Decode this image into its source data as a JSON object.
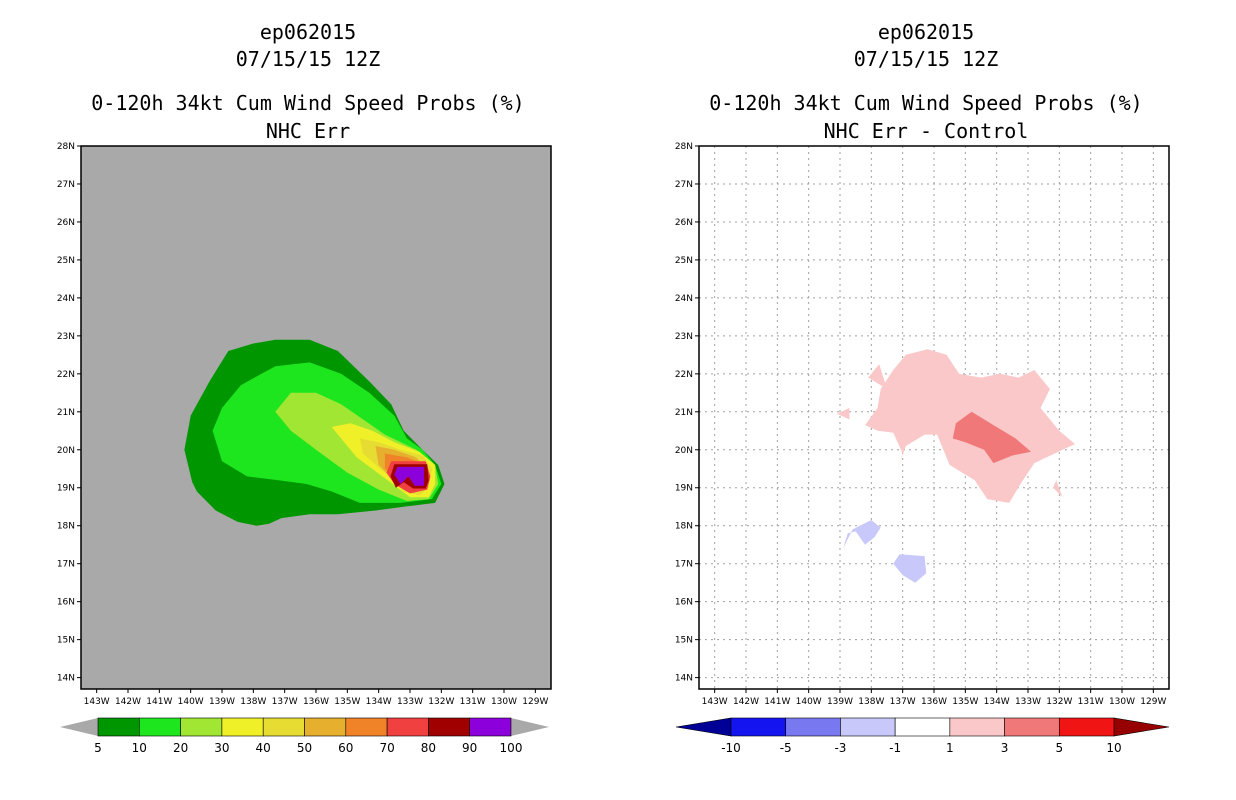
{
  "colors": {
    "background": "#a9a9a9",
    "plot_bg": "#ffffff",
    "grid": "#a0a0a0"
  },
  "chart_data": [
    {
      "type": "contour-map",
      "title_lines": [
        "ep062015",
        "07/15/15 12Z",
        "0-120h 34kt Cum Wind Speed Probs (%)",
        "NHC Err"
      ],
      "x_ticks": [
        "143W",
        "142W",
        "141W",
        "140W",
        "139W",
        "138W",
        "137W",
        "136W",
        "135W",
        "134W",
        "133W",
        "132W",
        "131W",
        "130W",
        "129W"
      ],
      "y_ticks": [
        "28N",
        "27N",
        "26N",
        "25N",
        "24N",
        "23N",
        "22N",
        "21N",
        "20N",
        "19N",
        "18N",
        "17N",
        "16N",
        "15N",
        "14N"
      ],
      "xlim_deg_w": [
        143.5,
        128.5
      ],
      "ylim_deg_n": [
        13.7,
        28.0
      ],
      "grid": false,
      "colorbar": {
        "labels": [
          "5",
          "10",
          "20",
          "30",
          "40",
          "50",
          "60",
          "70",
          "80",
          "90",
          "100"
        ],
        "colors": [
          "#009600",
          "#1ee61e",
          "#a0e632",
          "#f0f028",
          "#e6dc32",
          "#e6af2d",
          "#f08228",
          "#f04040",
          "#a00000",
          "#8c00dc"
        ]
      },
      "contours": [
        {
          "level": "5",
          "color": "#009600",
          "points": [
            [
              139.95,
              19.15
            ],
            [
              140.2,
              20.0
            ],
            [
              140.0,
              20.9
            ],
            [
              139.4,
              21.8
            ],
            [
              138.8,
              22.6
            ],
            [
              138.0,
              22.8
            ],
            [
              137.3,
              22.9
            ],
            [
              136.2,
              22.9
            ],
            [
              135.3,
              22.6
            ],
            [
              134.3,
              21.8
            ],
            [
              133.6,
              21.2
            ],
            [
              133.2,
              20.5
            ],
            [
              132.6,
              20.0
            ],
            [
              132.1,
              19.6
            ],
            [
              131.9,
              19.1
            ],
            [
              132.2,
              18.6
            ],
            [
              133.2,
              18.5
            ],
            [
              134.1,
              18.4
            ],
            [
              135.3,
              18.3
            ],
            [
              136.2,
              18.3
            ],
            [
              137.1,
              18.2
            ],
            [
              137.5,
              18.05
            ],
            [
              137.9,
              18.0
            ],
            [
              138.5,
              18.1
            ],
            [
              139.2,
              18.4
            ],
            [
              139.8,
              18.9
            ]
          ]
        },
        {
          "level": "10",
          "color": "#1ee61e",
          "points": [
            [
              139.3,
              20.5
            ],
            [
              139.0,
              21.1
            ],
            [
              138.4,
              21.7
            ],
            [
              137.3,
              22.2
            ],
            [
              136.2,
              22.3
            ],
            [
              135.2,
              22.0
            ],
            [
              134.3,
              21.5
            ],
            [
              133.5,
              20.9
            ],
            [
              133.1,
              20.3
            ],
            [
              132.6,
              20.0
            ],
            [
              132.2,
              19.6
            ],
            [
              132.0,
              19.1
            ],
            [
              132.3,
              18.7
            ],
            [
              133.3,
              18.6
            ],
            [
              134.6,
              18.6
            ],
            [
              135.5,
              18.9
            ],
            [
              136.3,
              19.1
            ],
            [
              137.2,
              19.2
            ],
            [
              138.2,
              19.3
            ],
            [
              139.0,
              19.7
            ]
          ]
        },
        {
          "level": "20",
          "color": "#a0e632",
          "points": [
            [
              137.3,
              21.0
            ],
            [
              136.8,
              21.5
            ],
            [
              136.0,
              21.5
            ],
            [
              135.2,
              21.2
            ],
            [
              134.5,
              20.8
            ],
            [
              133.8,
              20.4
            ],
            [
              132.8,
              20.0
            ],
            [
              132.2,
              19.6
            ],
            [
              132.1,
              19.1
            ],
            [
              132.4,
              18.7
            ],
            [
              133.1,
              18.65
            ],
            [
              134.0,
              18.95
            ],
            [
              135.0,
              19.4
            ],
            [
              136.0,
              20.0
            ],
            [
              136.8,
              20.5
            ]
          ]
        },
        {
          "level": "30",
          "color": "#f0f028",
          "points": [
            [
              135.5,
              20.6
            ],
            [
              134.9,
              20.7
            ],
            [
              134.2,
              20.5
            ],
            [
              133.5,
              20.2
            ],
            [
              132.7,
              19.95
            ],
            [
              132.2,
              19.6
            ],
            [
              132.2,
              19.1
            ],
            [
              132.4,
              18.75
            ],
            [
              133.0,
              18.75
            ],
            [
              133.8,
              19.25
            ],
            [
              134.7,
              19.8
            ]
          ]
        },
        {
          "level": "40",
          "color": "#e6dc32",
          "points": [
            [
              134.6,
              20.3
            ],
            [
              134.0,
              20.2
            ],
            [
              133.3,
              20.0
            ],
            [
              132.6,
              19.85
            ],
            [
              132.3,
              19.5
            ],
            [
              132.4,
              19.0
            ],
            [
              132.7,
              18.8
            ],
            [
              133.2,
              18.9
            ],
            [
              133.8,
              19.4
            ],
            [
              134.5,
              19.9
            ]
          ]
        },
        {
          "level": "50",
          "color": "#e6af2d",
          "points": [
            [
              134.1,
              20.1
            ],
            [
              133.5,
              20.0
            ],
            [
              132.8,
              19.8
            ],
            [
              132.4,
              19.4
            ],
            [
              132.5,
              19.0
            ],
            [
              132.9,
              18.85
            ],
            [
              133.4,
              19.1
            ],
            [
              134.0,
              19.6
            ]
          ]
        },
        {
          "level": "60",
          "color": "#f08228",
          "points": [
            [
              133.8,
              19.9
            ],
            [
              133.1,
              19.8
            ],
            [
              132.5,
              19.6
            ],
            [
              132.45,
              19.1
            ],
            [
              132.8,
              18.9
            ],
            [
              133.3,
              19.2
            ],
            [
              133.8,
              19.5
            ]
          ]
        },
        {
          "level": "70",
          "color": "#f04040",
          "points": [
            [
              133.6,
              19.7
            ],
            [
              132.5,
              19.7
            ],
            [
              132.35,
              19.3
            ],
            [
              132.45,
              18.95
            ],
            [
              133.0,
              18.85
            ],
            [
              133.5,
              19.1
            ],
            [
              133.75,
              19.4
            ]
          ]
        },
        {
          "level": "80",
          "color": "#a00000",
          "points": [
            [
              133.5,
              19.62
            ],
            [
              132.45,
              19.62
            ],
            [
              132.4,
              19.2
            ],
            [
              132.5,
              18.98
            ],
            [
              132.9,
              18.98
            ],
            [
              133.2,
              19.15
            ],
            [
              133.45,
              19.0
            ],
            [
              133.62,
              19.3
            ]
          ]
        },
        {
          "level": "90",
          "color": "#8c00dc",
          "points": [
            [
              133.4,
              19.55
            ],
            [
              132.55,
              19.55
            ],
            [
              132.55,
              19.05
            ],
            [
              132.85,
              19.05
            ],
            [
              133.05,
              19.3
            ],
            [
              133.3,
              19.1
            ],
            [
              133.5,
              19.35
            ]
          ]
        }
      ]
    },
    {
      "type": "contour-map",
      "title_lines": [
        "ep062015",
        "07/15/15 12Z",
        "0-120h 34kt Cum Wind Speed Probs (%)",
        "NHC Err - Control"
      ],
      "x_ticks": [
        "143W",
        "142W",
        "141W",
        "140W",
        "139W",
        "138W",
        "137W",
        "136W",
        "135W",
        "134W",
        "133W",
        "132W",
        "131W",
        "130W",
        "129W"
      ],
      "y_ticks": [
        "28N",
        "27N",
        "26N",
        "25N",
        "24N",
        "23N",
        "22N",
        "21N",
        "20N",
        "19N",
        "18N",
        "17N",
        "16N",
        "15N",
        "14N"
      ],
      "xlim_deg_w": [
        143.5,
        128.5
      ],
      "ylim_deg_n": [
        13.7,
        28.0
      ],
      "grid": true,
      "colorbar": {
        "labels": [
          "-10",
          "-5",
          "-3",
          "-1",
          "1",
          "3",
          "5",
          "10"
        ],
        "colors": [
          "#000096",
          "#1414f0",
          "#7878f0",
          "#c8c8fa",
          "#ffffff",
          "#fac8c8",
          "#f07878",
          "#f01414",
          "#960000"
        ]
      },
      "contours": [
        {
          "level": "1",
          "color": "#fac8c8",
          "points": [
            [
              137.7,
              21.6
            ],
            [
              137.3,
              22.1
            ],
            [
              136.9,
              22.5
            ],
            [
              136.2,
              22.65
            ],
            [
              135.6,
              22.5
            ],
            [
              135.2,
              22.0
            ],
            [
              134.5,
              21.9
            ],
            [
              133.9,
              22.0
            ],
            [
              133.3,
              21.9
            ],
            [
              132.8,
              22.1
            ],
            [
              132.3,
              21.6
            ],
            [
              132.6,
              21.1
            ],
            [
              132.0,
              20.5
            ],
            [
              131.5,
              20.15
            ],
            [
              131.9,
              20.0
            ],
            [
              132.8,
              19.65
            ],
            [
              133.2,
              19.15
            ],
            [
              133.6,
              18.6
            ],
            [
              134.3,
              18.7
            ],
            [
              134.7,
              19.2
            ],
            [
              135.5,
              19.6
            ],
            [
              135.9,
              20.4
            ],
            [
              136.3,
              20.4
            ],
            [
              136.9,
              20.1
            ],
            [
              137.2,
              19.4
            ],
            [
              137.0,
              19.9
            ],
            [
              137.3,
              20.45
            ],
            [
              137.8,
              20.5
            ],
            [
              138.2,
              20.65
            ],
            [
              137.8,
              21.1
            ]
          ]
        },
        {
          "level": "1",
          "color": "#fac8c8",
          "points": [
            [
              138.1,
              21.9
            ],
            [
              137.75,
              22.25
            ],
            [
              137.5,
              21.6
            ]
          ]
        },
        {
          "level": "1",
          "color": "#fac8c8",
          "points": [
            [
              139.1,
              20.95
            ],
            [
              138.7,
              21.1
            ],
            [
              138.7,
              20.8
            ]
          ]
        },
        {
          "level": "1",
          "color": "#fac8c8",
          "points": [
            [
              132.2,
              19.0
            ],
            [
              131.9,
              18.75
            ],
            [
              132.1,
              19.2
            ]
          ]
        },
        {
          "level": "3",
          "color": "#f07878",
          "points": [
            [
              135.3,
              20.7
            ],
            [
              134.8,
              21.0
            ],
            [
              134.2,
              20.7
            ],
            [
              133.4,
              20.3
            ],
            [
              132.9,
              19.95
            ],
            [
              133.5,
              19.85
            ],
            [
              134.1,
              19.65
            ],
            [
              134.4,
              20.0
            ],
            [
              135.0,
              20.2
            ],
            [
              135.4,
              20.3
            ]
          ]
        },
        {
          "level": "-1",
          "color": "#c8c8fa",
          "points": [
            [
              138.9,
              17.4
            ],
            [
              138.6,
              17.9
            ],
            [
              138.0,
              18.15
            ],
            [
              137.7,
              17.95
            ],
            [
              137.9,
              17.7
            ],
            [
              138.2,
              17.5
            ],
            [
              138.5,
              17.85
            ],
            [
              138.75,
              17.8
            ]
          ]
        },
        {
          "level": "-1",
          "color": "#c8c8fa",
          "points": [
            [
              137.3,
              17.0
            ],
            [
              137.1,
              17.25
            ],
            [
              136.3,
              17.2
            ],
            [
              136.25,
              16.75
            ],
            [
              136.6,
              16.5
            ],
            [
              137.0,
              16.7
            ]
          ]
        }
      ]
    }
  ]
}
